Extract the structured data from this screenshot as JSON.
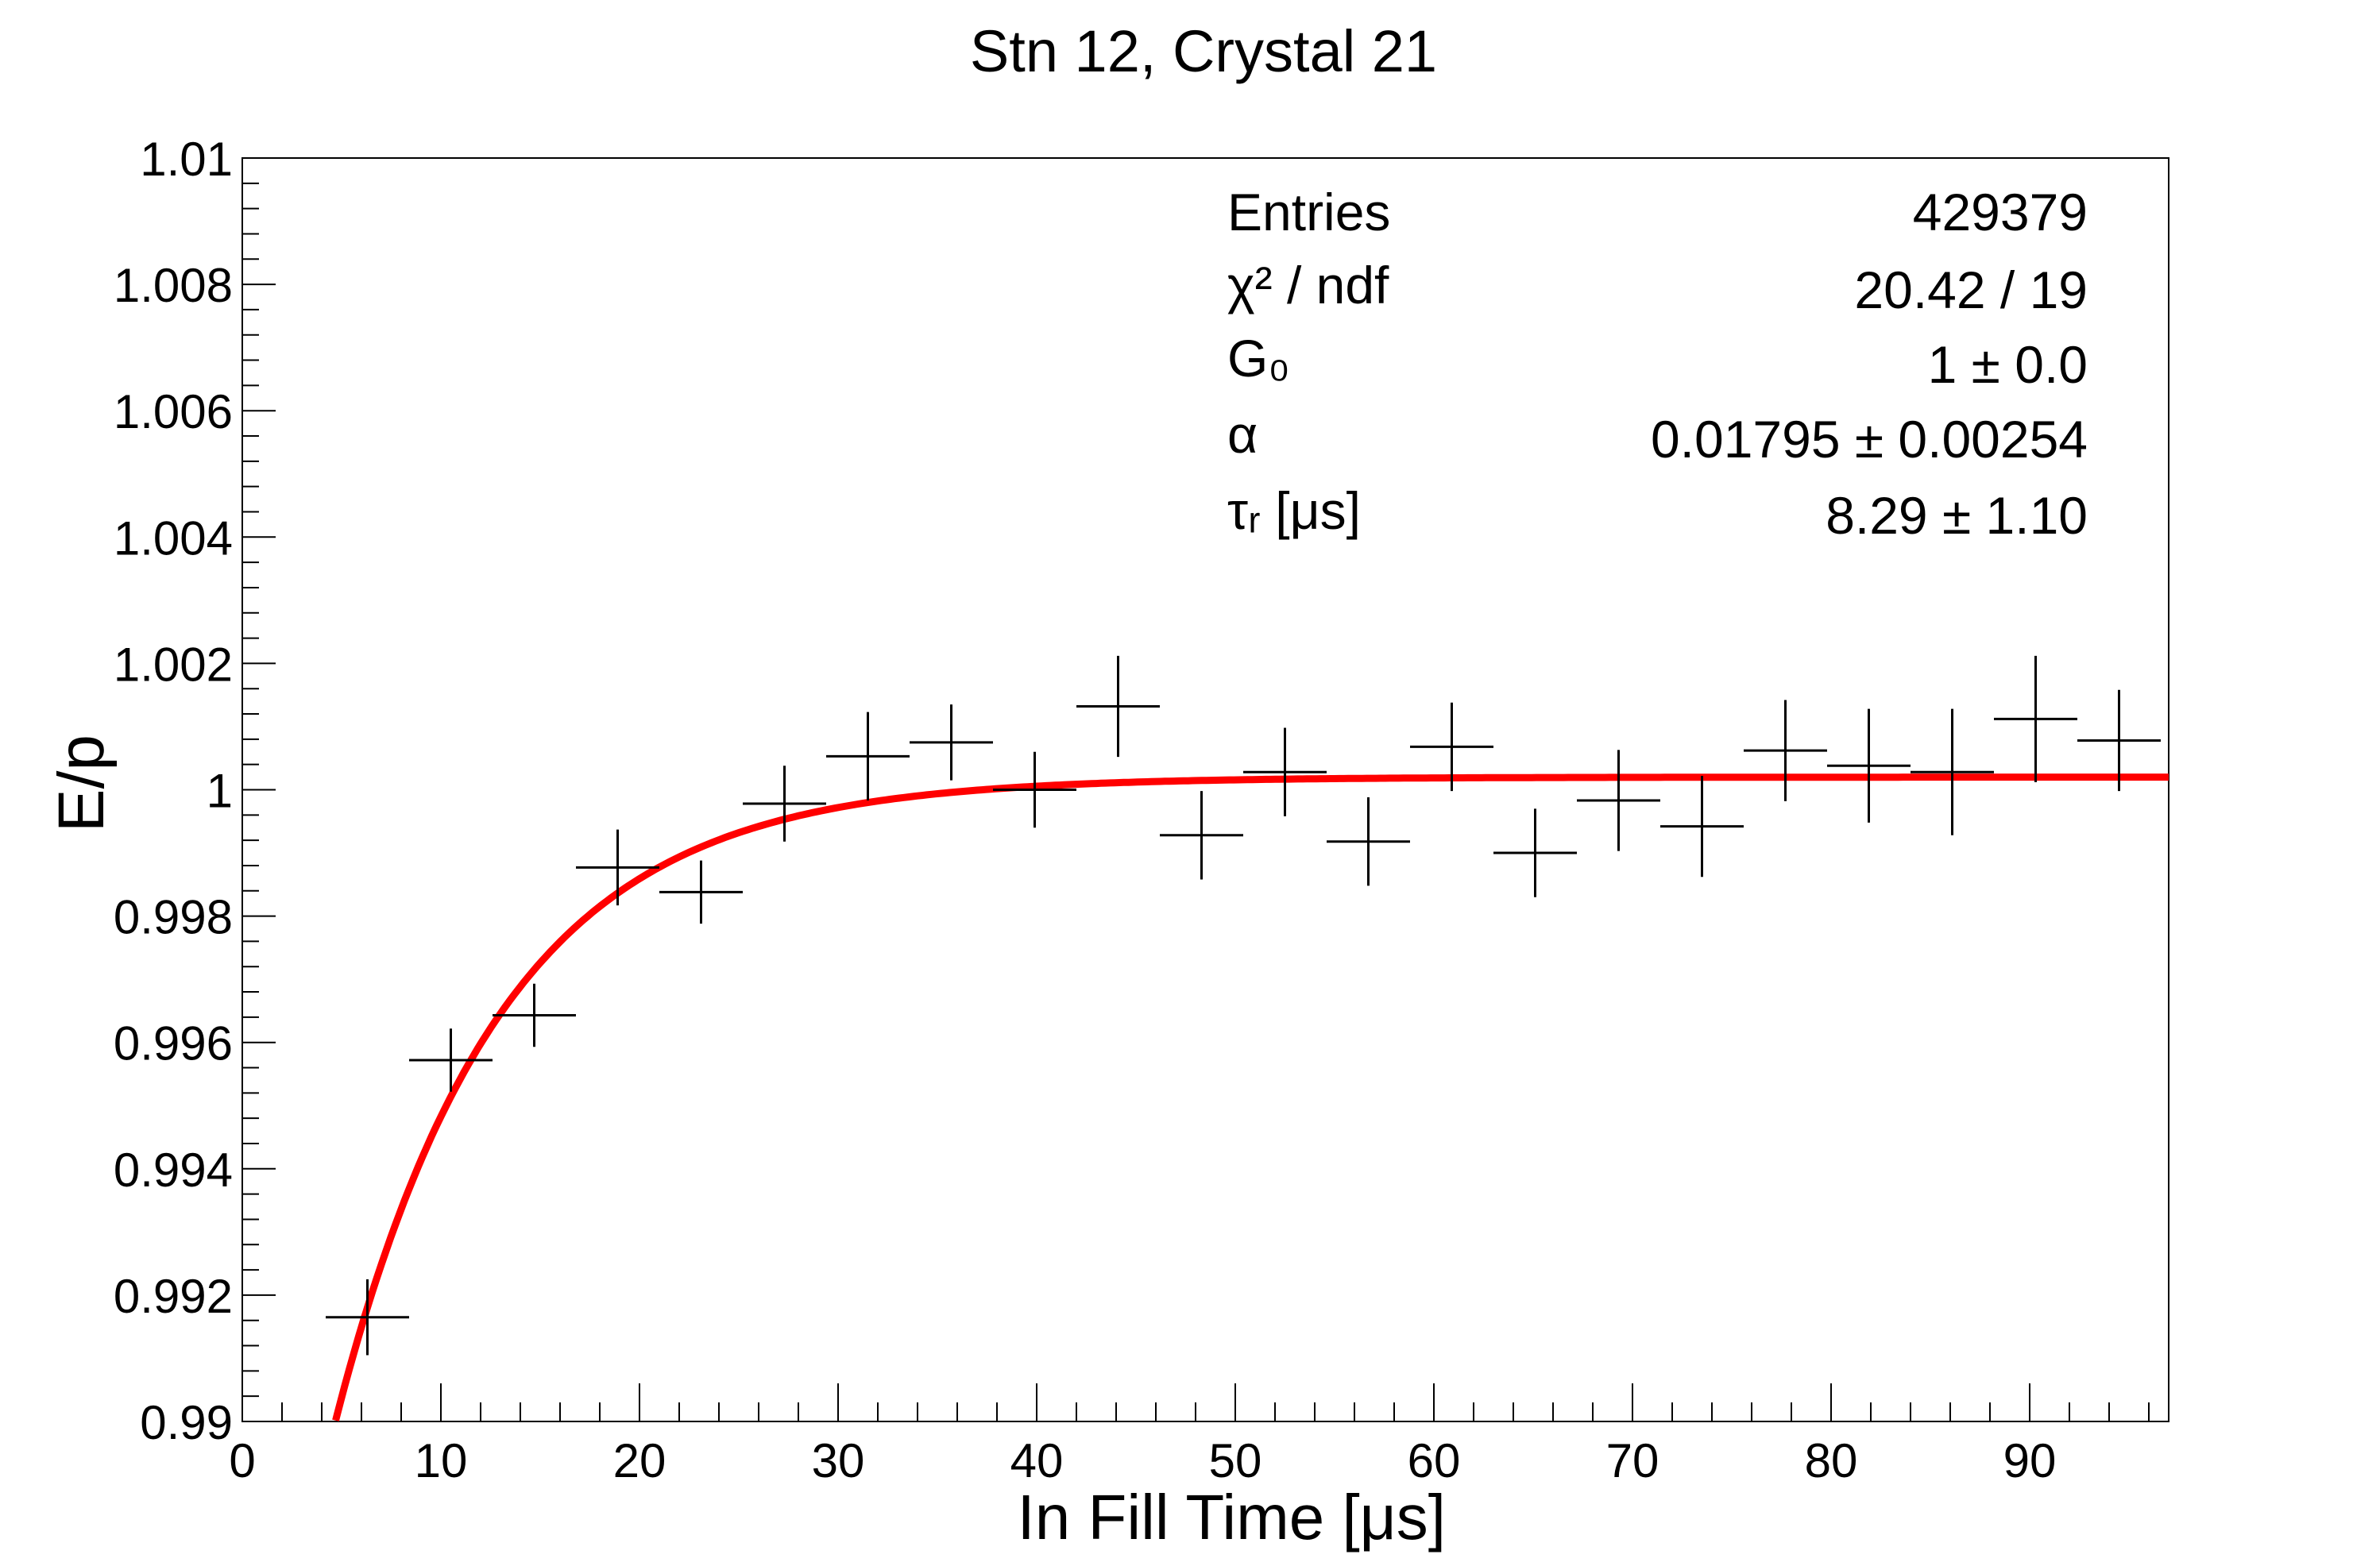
{
  "chart_data": {
    "type": "scatter",
    "title": "Stn 12, Crystal 21",
    "xlabel": "In Fill Time [μs]",
    "ylabel": "E/p",
    "xlim": [
      0,
      97
    ],
    "ylim": [
      0.99,
      1.01
    ],
    "x_ticks": [
      {
        "value": 0,
        "label": "0"
      },
      {
        "value": 10,
        "label": "10"
      },
      {
        "value": 20,
        "label": "20"
      },
      {
        "value": 30,
        "label": "30"
      },
      {
        "value": 40,
        "label": "40"
      },
      {
        "value": 50,
        "label": "50"
      },
      {
        "value": 60,
        "label": "60"
      },
      {
        "value": 70,
        "label": "70"
      },
      {
        "value": 80,
        "label": "80"
      },
      {
        "value": 90,
        "label": "90"
      }
    ],
    "y_ticks": [
      {
        "value": 0.99,
        "label": "0.99"
      },
      {
        "value": 0.992,
        "label": "0.992"
      },
      {
        "value": 0.994,
        "label": "0.994"
      },
      {
        "value": 0.996,
        "label": "0.996"
      },
      {
        "value": 0.998,
        "label": "0.998"
      },
      {
        "value": 1.0,
        "label": "1"
      },
      {
        "value": 1.002,
        "label": "1.002"
      },
      {
        "value": 1.004,
        "label": "1.004"
      },
      {
        "value": 1.006,
        "label": "1.006"
      },
      {
        "value": 1.008,
        "label": "1.008"
      },
      {
        "value": 1.01,
        "label": "1.01"
      }
    ],
    "points": [
      {
        "x": 6.3,
        "x_err": 2.1,
        "y": 0.99165,
        "y_err": 0.0006
      },
      {
        "x": 10.5,
        "x_err": 2.1,
        "y": 0.99572,
        "y_err": 0.0005
      },
      {
        "x": 14.7,
        "x_err": 2.1,
        "y": 0.99643,
        "y_err": 0.0005
      },
      {
        "x": 18.9,
        "x_err": 2.1,
        "y": 0.99877,
        "y_err": 0.0006
      },
      {
        "x": 23.1,
        "x_err": 2.1,
        "y": 0.99838,
        "y_err": 0.0005
      },
      {
        "x": 27.3,
        "x_err": 2.1,
        "y": 0.99978,
        "y_err": 0.0006
      },
      {
        "x": 31.5,
        "x_err": 2.1,
        "y": 1.00053,
        "y_err": 0.0007
      },
      {
        "x": 35.7,
        "x_err": 2.1,
        "y": 1.00075,
        "y_err": 0.0006
      },
      {
        "x": 39.9,
        "x_err": 2.1,
        "y": 1.0,
        "y_err": 0.0006
      },
      {
        "x": 44.1,
        "x_err": 2.1,
        "y": 1.00132,
        "y_err": 0.0008
      },
      {
        "x": 48.3,
        "x_err": 2.1,
        "y": 0.99928,
        "y_err": 0.0007
      },
      {
        "x": 52.5,
        "x_err": 2.1,
        "y": 1.00028,
        "y_err": 0.0007
      },
      {
        "x": 56.7,
        "x_err": 2.1,
        "y": 0.99918,
        "y_err": 0.0007
      },
      {
        "x": 60.9,
        "x_err": 2.1,
        "y": 1.00068,
        "y_err": 0.0007
      },
      {
        "x": 65.1,
        "x_err": 2.1,
        "y": 0.999,
        "y_err": 0.0007
      },
      {
        "x": 69.3,
        "x_err": 2.1,
        "y": 0.99983,
        "y_err": 0.0008
      },
      {
        "x": 73.5,
        "x_err": 2.1,
        "y": 0.99942,
        "y_err": 0.0008
      },
      {
        "x": 77.7,
        "x_err": 2.1,
        "y": 1.00062,
        "y_err": 0.0008
      },
      {
        "x": 81.9,
        "x_err": 2.1,
        "y": 1.00038,
        "y_err": 0.0009
      },
      {
        "x": 86.1,
        "x_err": 2.1,
        "y": 1.00028,
        "y_err": 0.001
      },
      {
        "x": 90.3,
        "x_err": 2.1,
        "y": 1.00112,
        "y_err": 0.001
      },
      {
        "x": 94.5,
        "x_err": 2.1,
        "y": 1.00078,
        "y_err": 0.0008
      }
    ],
    "fit": {
      "color": "#ff0000",
      "function": "G0 * (1 - alpha * exp(-t / tau_r))",
      "G0": 1.0002,
      "alpha": 0.01795,
      "tau_r": 8.29,
      "x_range": [
        4.7,
        97
      ]
    },
    "stats": [
      {
        "label": "Entries",
        "value": "429379"
      },
      {
        "label": "χ² / ndf",
        "value": "20.42 / 19"
      },
      {
        "label": "G₀",
        "value": "1 ± 0.0"
      },
      {
        "label": "α",
        "value": "0.01795 ± 0.00254"
      },
      {
        "label": "τᵣ [μs]",
        "value": "8.29 ± 1.10"
      }
    ],
    "grid": false,
    "marker_color": "#000000"
  }
}
